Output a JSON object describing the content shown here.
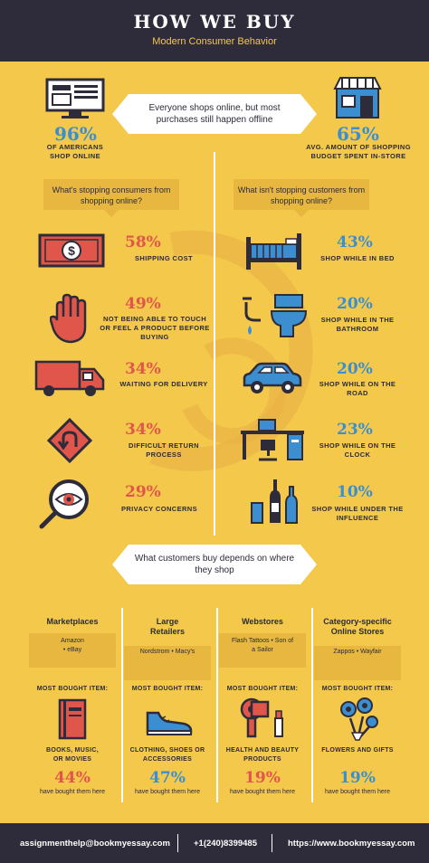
{
  "header": {
    "title": "HOW WE BUY",
    "subtitle": "Modern Consumer Behavior"
  },
  "intro": {
    "bubble": "Everyone shops online, but most purchases still happen offline",
    "left": {
      "value": "96%",
      "label": "OF AMERICANS SHOP ONLINE",
      "icon": "computer-icon"
    },
    "right": {
      "value": "65%",
      "label": "AVG. AMOUNT OF SHOPPING BUDGET SPENT IN-STORE",
      "icon": "store-icon"
    }
  },
  "stopping": {
    "question": "What's stopping consumers from shopping online?",
    "items": [
      {
        "value": "58%",
        "label": "SHIPPING COST",
        "icon": "money-icon"
      },
      {
        "value": "49%",
        "label": "NOT BEING ABLE TO TOUCH OR FEEL A PRODUCT BEFORE BUYING",
        "icon": "hand-icon"
      },
      {
        "value": "34%",
        "label": "WAITING FOR DELIVERY",
        "icon": "truck-icon"
      },
      {
        "value": "34%",
        "label": "DIFFICULT RETURN PROCESS",
        "icon": "return-sign-icon"
      },
      {
        "value": "29%",
        "label": "PRIVACY CONCERNS",
        "icon": "magnifier-eye-icon"
      }
    ]
  },
  "not_stopping": {
    "question": "What isn't stopping customers from shopping online?",
    "items": [
      {
        "value": "43%",
        "label": "SHOP WHILE IN BED",
        "icon": "bed-icon"
      },
      {
        "value": "20%",
        "label": "SHOP WHILE IN THE BATHROOM",
        "icon": "toilet-icon"
      },
      {
        "value": "20%",
        "label": "SHOP WHILE ON THE ROAD",
        "icon": "car-icon"
      },
      {
        "value": "23%",
        "label": "SHOP WHILE ON THE CLOCK",
        "icon": "desk-icon"
      },
      {
        "value": "10%",
        "label": "SHOP WHILE UNDER THE INFLUENCE",
        "icon": "bottles-icon"
      }
    ]
  },
  "depends": {
    "bubble": "What customers buy depends on where they shop",
    "most_bought_label": "MOST BOUGHT ITEM:",
    "had_label": "have bought them here",
    "columns": [
      {
        "name": "Marketplaces",
        "stores": "Amazon\n• eBay",
        "items": "BOOKS, MUSIC, OR MOVIES",
        "value": "44%",
        "icon": "book-icon"
      },
      {
        "name": "Large Retailers",
        "stores": "Nordstrom • Macy's",
        "items": "CLOTHING, SHOES OR ACCESSORIES",
        "value": "47%",
        "icon": "shoe-icon"
      },
      {
        "name": "Webstores",
        "stores": "Flash Tattoos • Son of a Sailor",
        "items": "HEALTH AND BEAUTY PRODUCTS",
        "value": "19%",
        "icon": "hairdryer-icon"
      },
      {
        "name": "Category-specific Online Stores",
        "stores": "Zappos • Wayfair",
        "items": "FLOWERS AND GIFTS",
        "value": "19%",
        "icon": "flowers-icon"
      }
    ]
  },
  "footer": {
    "email": "assignmenthelp@bookmyessay.com",
    "phone": "+1(240)8399485",
    "url": "https://www.bookmyessay.com"
  },
  "colors": {
    "background": "#f3c84b",
    "dark": "#2e2c3a",
    "red": "#e1564b",
    "blue": "#3b8fd0"
  }
}
